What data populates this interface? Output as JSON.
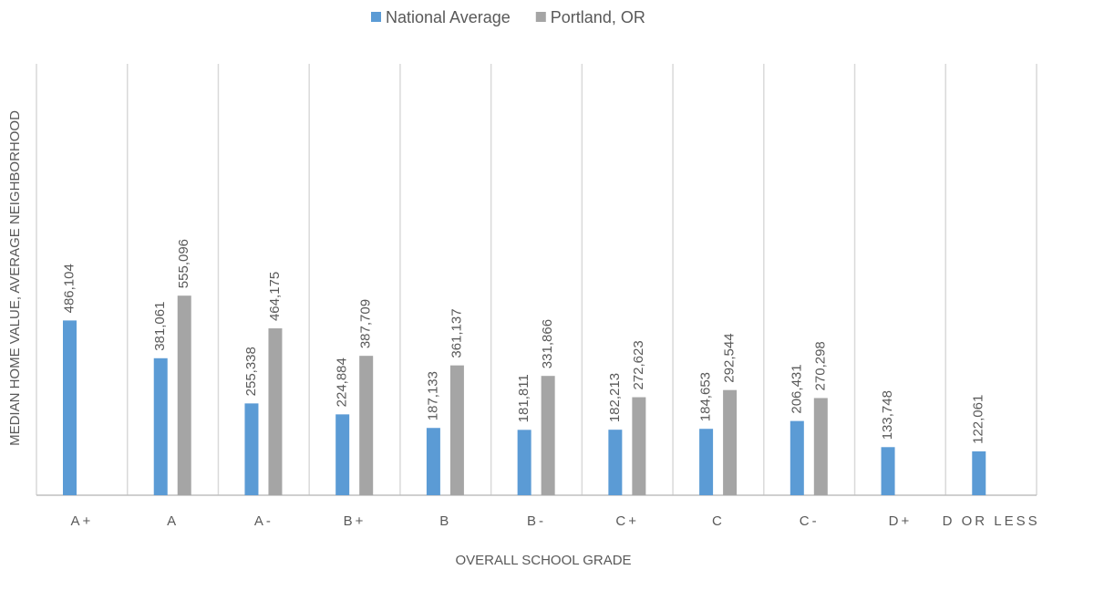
{
  "chart_data": {
    "type": "bar",
    "x_label": "OVERALL SCHOOL GRADE",
    "y_label": "MEDIAN HOME VALUE, AVERAGE NEIGHBORHOOD",
    "categories": [
      "A+",
      "A",
      "A-",
      "B+",
      "B",
      "B-",
      "C+",
      "C",
      "C-",
      "D+",
      "D OR LESS"
    ],
    "series": [
      {
        "name": "National Average",
        "color": "#5b9bd5",
        "values": [
          486104,
          381061,
          255338,
          224884,
          187133,
          181811,
          182213,
          184653,
          206431,
          133748,
          122061
        ],
        "value_labels": [
          "486,104",
          "381,061",
          "255,338",
          "224,884",
          "187,133",
          "181,811",
          "182,213",
          "184,653",
          "206,431",
          "133,748",
          "122,061"
        ]
      },
      {
        "name": "Portland, OR",
        "color": "#a5a5a5",
        "values": [
          null,
          555096,
          464175,
          387709,
          361137,
          331866,
          272623,
          292544,
          270298,
          null,
          null
        ],
        "value_labels": [
          null,
          "555,096",
          "464,175",
          "387,709",
          "361,137",
          "331,866",
          "272,623",
          "292,544",
          "270,298",
          null,
          null
        ]
      }
    ],
    "ylim": [
      0,
      1200000
    ],
    "legend": "top"
  }
}
